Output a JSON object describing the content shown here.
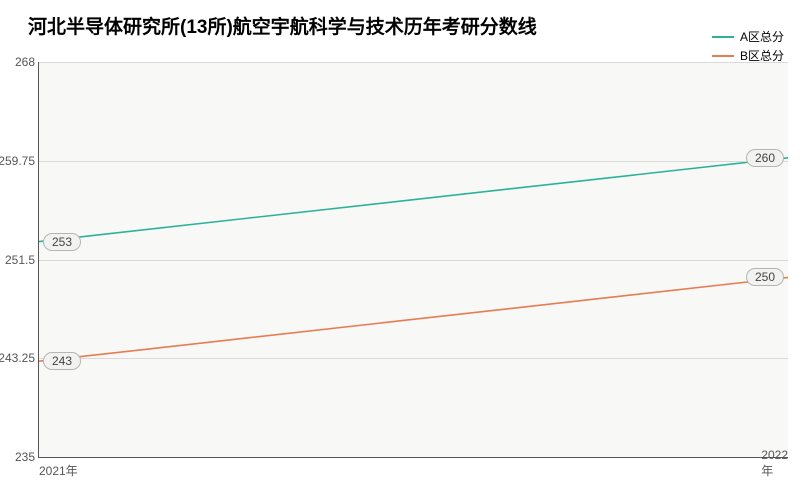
{
  "chart": {
    "type": "line",
    "title": "河北半导体研究所(13所)航空宇航科学与技术历年考研分数线",
    "title_fontsize": 19,
    "background_color": "#ffffff",
    "plot_background_color": "#f8f8f6",
    "axis_color": "#555555",
    "grid_color": "#d9d9d9",
    "font_family": "Microsoft YaHei",
    "x_categories": [
      "2021年",
      "2022年"
    ],
    "ylim": [
      235,
      268
    ],
    "yticks": [
      235,
      243.25,
      251.5,
      259.75,
      268
    ],
    "series": [
      {
        "name": "A区总分",
        "color": "#2bb39a",
        "line_width": 1.6,
        "values": [
          253,
          260
        ]
      },
      {
        "name": "B区总分",
        "color": "#e87b52",
        "line_width": 1.6,
        "values": [
          243,
          250
        ]
      }
    ],
    "legend": {
      "position": "top-right",
      "fontsize": 12
    },
    "label_fontsize": 12,
    "label_bg": "#f2f2f0",
    "label_border": "#b5b5b5"
  }
}
